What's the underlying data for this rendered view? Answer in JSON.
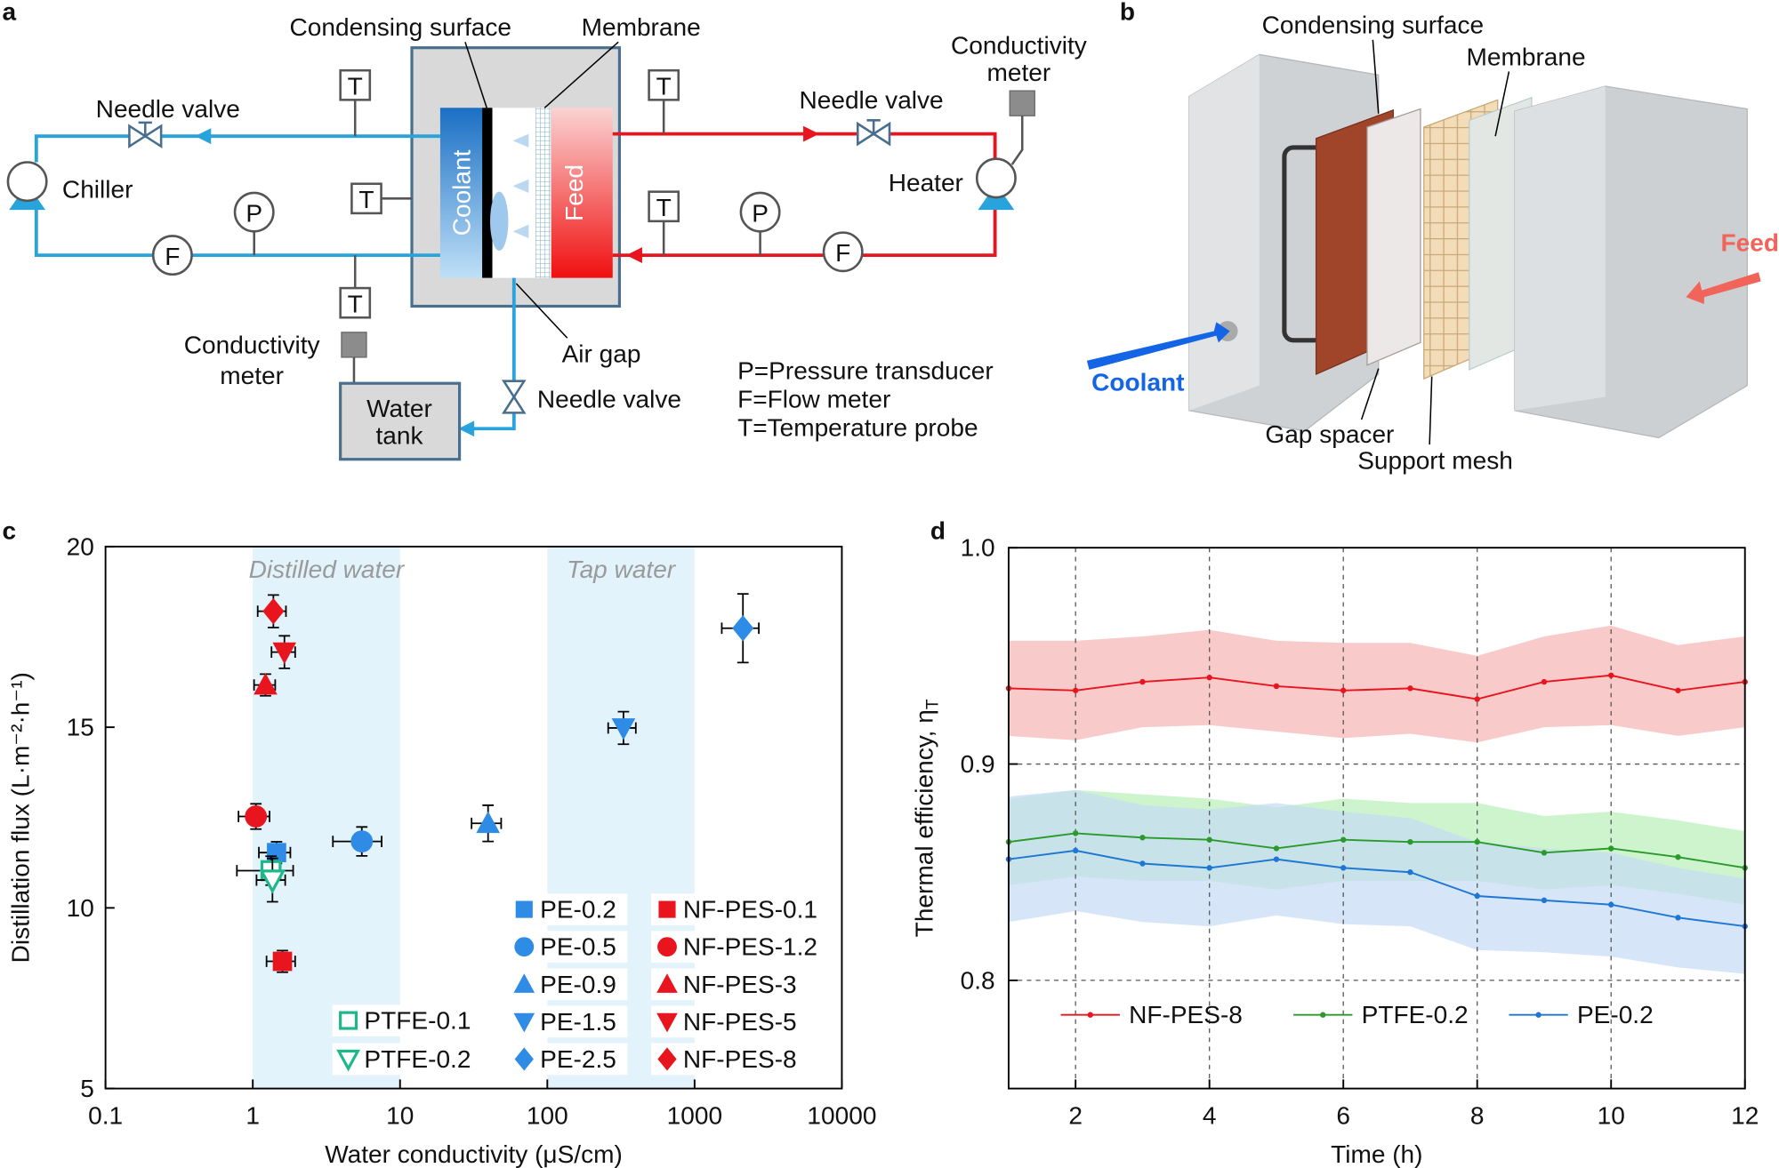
{
  "panel_a": {
    "label": "a",
    "condensing_surface": "Condensing surface",
    "membrane": "Membrane",
    "needle_valves": [
      "Needle valve",
      "Needle valve",
      "Needle valve"
    ],
    "chiller": "Chiller",
    "heater": "Heater",
    "coolant": "Coolant",
    "feed": "Feed",
    "conductivity_meters": [
      [
        "Conductivity",
        "meter"
      ],
      [
        "Conductivity",
        "meter"
      ]
    ],
    "air_gap": "Air gap",
    "water_tank": [
      "Water",
      "tank"
    ],
    "instruments": [
      "T",
      "T",
      "T",
      "T",
      "T",
      "P",
      "P",
      "F",
      "F"
    ],
    "key": [
      "P=Pressure transducer",
      "F=Flow meter",
      "T=Temperature probe"
    ]
  },
  "panel_b": {
    "label": "b",
    "condensing_surface": "Condensing surface",
    "membrane": "Membrane",
    "coolant": "Coolant",
    "feed": "Feed",
    "gap_spacer": "Gap spacer",
    "support_mesh": "Support mesh"
  },
  "chart_data": [
    {
      "type": "scatter",
      "panel": "c",
      "x_label": "Water conductivity (μS/cm)",
      "y_label": "Distillation flux  (L·m⁻²·h⁻¹)",
      "xscale": "log",
      "xlim": [
        0.1,
        10000
      ],
      "xticks": [
        0.1,
        1,
        10,
        100,
        1000,
        10000
      ],
      "ylim": [
        5,
        20
      ],
      "yticks": [
        5,
        10,
        15,
        20
      ],
      "legend": "lower right",
      "regions": [
        {
          "label": "Distilled water",
          "x": [
            1,
            10
          ],
          "color": "#e3f3fb"
        },
        {
          "label": "Tap water",
          "x": [
            100,
            1000
          ],
          "color": "#e3f3fb"
        }
      ],
      "series": [
        {
          "name": "PE-0.2",
          "color": "#2e8be6",
          "marker": "square",
          "filled": true,
          "x": [
            1.45
          ],
          "y": [
            11.53
          ],
          "xerr": [
            0.35
          ],
          "yerr": [
            0.3
          ]
        },
        {
          "name": "PE-0.5",
          "color": "#2e8be6",
          "marker": "circle",
          "filled": true,
          "x": [
            5.5
          ],
          "y": [
            11.84
          ],
          "xerr": [
            2.0
          ],
          "yerr": [
            0.4
          ]
        },
        {
          "name": "PE-0.9",
          "color": "#2e8be6",
          "marker": "triangle-up",
          "filled": true,
          "x": [
            39.6
          ],
          "y": [
            12.34
          ],
          "xerr": [
            9
          ],
          "yerr": [
            0.5
          ]
        },
        {
          "name": "PE-1.5",
          "color": "#2e8be6",
          "marker": "triangle-down",
          "filled": true,
          "x": [
            329
          ],
          "y": [
            14.98
          ],
          "xerr": [
            70
          ],
          "yerr": [
            0.45
          ]
        },
        {
          "name": "PE-2.5",
          "color": "#2e8be6",
          "marker": "diamond",
          "filled": true,
          "x": [
            2130
          ],
          "y": [
            17.74
          ],
          "xerr": [
            600
          ],
          "yerr": [
            0.95
          ]
        },
        {
          "name": "NF-PES-0.1",
          "color": "#e8141e",
          "marker": "square",
          "filled": true,
          "x": [
            1.59
          ],
          "y": [
            8.52
          ],
          "xerr": [
            0.35
          ],
          "yerr": [
            0.3
          ]
        },
        {
          "name": "NF-PES-1.2",
          "color": "#e8141e",
          "marker": "circle",
          "filled": true,
          "x": [
            1.05
          ],
          "y": [
            12.53
          ],
          "xerr": [
            0.25
          ],
          "yerr": [
            0.35
          ]
        },
        {
          "name": "NF-PES-3",
          "color": "#e8141e",
          "marker": "triangle-up",
          "filled": true,
          "x": [
            1.22
          ],
          "y": [
            16.17
          ],
          "xerr": [
            0.2
          ],
          "yerr": [
            0.3
          ]
        },
        {
          "name": "NF-PES-5",
          "color": "#e8141e",
          "marker": "triangle-down",
          "filled": true,
          "x": [
            1.64
          ],
          "y": [
            17.08
          ],
          "xerr": [
            0.3
          ],
          "yerr": [
            0.45
          ]
        },
        {
          "name": "NF-PES-8",
          "color": "#e8141e",
          "marker": "diamond",
          "filled": true,
          "x": [
            1.38
          ],
          "y": [
            18.21
          ],
          "xerr": [
            0.3
          ],
          "yerr": [
            0.45
          ]
        },
        {
          "name": "PTFE-0.1",
          "color": "#1db88a",
          "marker": "square",
          "filled": false,
          "x": [
            1.33
          ],
          "y": [
            11.03
          ],
          "xerr": [
            0.55
          ],
          "yerr": [
            0.4
          ]
        },
        {
          "name": "PTFE-0.2",
          "color": "#1db88a",
          "marker": "triangle-down",
          "filled": false,
          "x": [
            1.36
          ],
          "y": [
            10.77
          ],
          "xerr": [
            0.3
          ],
          "yerr": [
            0.6
          ]
        }
      ]
    },
    {
      "type": "line",
      "panel": "d",
      "x_label": "Time (h)",
      "y_label": "Thermal efficiency, η",
      "y_label_subscript": "T",
      "xlim": [
        1,
        12
      ],
      "xticks": [
        2,
        4,
        6,
        8,
        10,
        12
      ],
      "ylim": [
        0.75,
        1.0
      ],
      "yticks": [
        0.8,
        0.9,
        {
          "value": 1,
          "label": "1.0"
        }
      ],
      "grid": true,
      "legend": "lower center",
      "x": [
        1,
        2,
        3,
        4,
        5,
        6,
        7,
        8,
        9,
        10,
        11,
        12
      ],
      "series": [
        {
          "name": "NF-PES-8",
          "color": "#e8141e",
          "band_color": "#f7b3b3",
          "values": [
            0.935,
            0.934,
            0.938,
            0.94,
            0.936,
            0.934,
            0.935,
            0.93,
            0.938,
            0.941,
            0.934,
            0.938
          ],
          "errors": [
            0.022,
            0.023,
            0.021,
            0.022,
            0.021,
            0.022,
            0.021,
            0.02,
            0.021,
            0.023,
            0.021,
            0.021
          ]
        },
        {
          "name": "PTFE-0.2",
          "color": "#2a9a2a",
          "band_color": "#b9efb9",
          "values": [
            0.864,
            0.868,
            0.866,
            0.865,
            0.861,
            0.865,
            0.864,
            0.864,
            0.859,
            0.861,
            0.857,
            0.852
          ],
          "errors": [
            0.02,
            0.02,
            0.02,
            0.019,
            0.019,
            0.019,
            0.018,
            0.018,
            0.017,
            0.017,
            0.017,
            0.017
          ]
        },
        {
          "name": "PE-0.2",
          "color": "#1f77d4",
          "band_color": "#c4dcf5",
          "values": [
            0.856,
            0.86,
            0.854,
            0.852,
            0.856,
            0.852,
            0.85,
            0.839,
            0.837,
            0.835,
            0.829,
            0.825
          ],
          "errors": [
            0.029,
            0.028,
            0.027,
            0.027,
            0.026,
            0.026,
            0.025,
            0.025,
            0.024,
            0.024,
            0.023,
            0.022
          ]
        }
      ]
    }
  ]
}
